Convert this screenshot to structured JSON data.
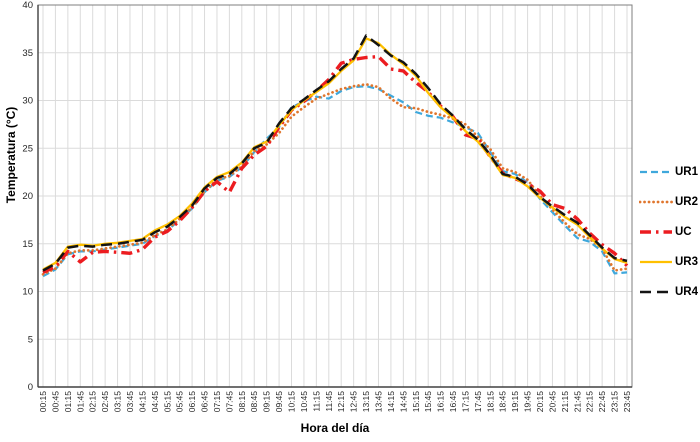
{
  "chart_data": {
    "type": "line",
    "title": "",
    "xlabel": "Hora del día",
    "ylabel": "Temperatura (°C)",
    "ylim": [
      0,
      40
    ],
    "y_ticks": [
      0,
      5,
      10,
      15,
      20,
      25,
      30,
      35,
      40
    ],
    "grid": true,
    "legend_position": "right",
    "categories": [
      "00:15",
      "00:45",
      "01:15",
      "01:45",
      "02:15",
      "02:45",
      "03:15",
      "03:45",
      "04:15",
      "04:45",
      "05:15",
      "05:45",
      "06:15",
      "06:45",
      "07:15",
      "07:45",
      "08:15",
      "08:45",
      "09:15",
      "09:45",
      "10:15",
      "10:45",
      "11:15",
      "11:45",
      "12:15",
      "12:45",
      "13:15",
      "13:45",
      "14:15",
      "14:45",
      "15:15",
      "15:45",
      "16:15",
      "16:45",
      "17:15",
      "17:45",
      "18:15",
      "18:45",
      "19:15",
      "19:45",
      "20:15",
      "20:45",
      "21:15",
      "21:45",
      "22:15",
      "22:45",
      "23:15",
      "23:45"
    ],
    "series": [
      {
        "name": "UR1",
        "color": "#3FA8DC",
        "style": "dashed",
        "dash": "7 4",
        "width": 2.2,
        "linecap": "butt",
        "values": [
          11.6,
          12.3,
          13.9,
          14.2,
          14.2,
          14.4,
          14.6,
          14.8,
          15.0,
          15.8,
          16.4,
          17.5,
          18.7,
          20.4,
          21.6,
          22.0,
          23.0,
          24.6,
          26.0,
          27.2,
          29.3,
          29.9,
          30.4,
          30.2,
          31.0,
          31.4,
          31.5,
          31.2,
          30.5,
          29.8,
          28.8,
          28.4,
          28.2,
          27.7,
          27.2,
          26.6,
          24.6,
          22.6,
          22.3,
          21.4,
          19.7,
          18.3,
          16.9,
          15.6,
          15.2,
          14.2,
          11.9,
          12.0
        ]
      },
      {
        "name": "UR2",
        "color": "#E0762D",
        "style": "dotted",
        "dash": "0.1 4.4",
        "width": 2.7,
        "linecap": "round",
        "values": [
          11.8,
          12.4,
          14.0,
          14.3,
          14.3,
          14.5,
          14.7,
          14.9,
          15.1,
          15.9,
          16.5,
          17.6,
          18.8,
          20.5,
          21.7,
          22.1,
          23.1,
          24.7,
          25.4,
          26.6,
          28.3,
          29.3,
          30.2,
          30.7,
          31.2,
          31.5,
          31.7,
          31.4,
          30.2,
          29.3,
          29.2,
          28.8,
          28.5,
          28.1,
          27.5,
          26.2,
          24.9,
          22.9,
          22.5,
          21.7,
          20.0,
          18.6,
          17.2,
          16.0,
          15.5,
          14.5,
          12.2,
          12.4
        ]
      },
      {
        "name": "UC",
        "color": "#EC1C20",
        "style": "dash-dot",
        "dash": "11 5 2.5 5",
        "width": 3.4,
        "linecap": "butt",
        "values": [
          12.0,
          12.6,
          14.2,
          13.1,
          14.1,
          14.2,
          14.1,
          14.0,
          14.4,
          15.7,
          16.3,
          17.4,
          18.8,
          20.5,
          21.5,
          20.4,
          22.9,
          24.3,
          25.2,
          27.2,
          29.0,
          29.9,
          31.0,
          32.2,
          33.9,
          34.3,
          34.5,
          34.6,
          33.3,
          33.1,
          31.9,
          30.9,
          29.4,
          28.3,
          26.4,
          26.0,
          24.1,
          22.4,
          21.8,
          21.3,
          20.5,
          19.1,
          18.7,
          17.6,
          16.1,
          14.9,
          14.0,
          12.7
        ]
      },
      {
        "name": "UR3",
        "color": "#FFC000",
        "style": "solid",
        "dash": "",
        "width": 2.3,
        "linecap": "butt",
        "values": [
          12.3,
          13.0,
          14.7,
          14.9,
          14.8,
          15.0,
          15.1,
          15.3,
          15.5,
          16.4,
          17.0,
          17.9,
          19.2,
          20.9,
          22.0,
          22.5,
          23.5,
          25.1,
          25.7,
          27.4,
          29.0,
          30.0,
          30.9,
          31.8,
          33.1,
          34.2,
          36.5,
          36.0,
          34.8,
          33.8,
          32.6,
          30.8,
          29.3,
          28.2,
          26.8,
          25.7,
          24.1,
          22.2,
          21.9,
          21.0,
          19.8,
          18.8,
          17.8,
          17.0,
          15.7,
          14.5,
          13.4,
          13.0
        ]
      },
      {
        "name": "UR4",
        "color": "#141414",
        "style": "dashed",
        "dash": "11 6",
        "width": 2.5,
        "linecap": "butt",
        "values": [
          12.2,
          12.9,
          14.6,
          14.8,
          14.7,
          14.9,
          15.0,
          15.2,
          15.4,
          16.2,
          16.8,
          17.8,
          19.0,
          20.8,
          21.9,
          22.3,
          23.4,
          25.0,
          25.6,
          27.6,
          29.2,
          30.1,
          31.1,
          32.0,
          33.3,
          34.4,
          36.8,
          35.8,
          34.7,
          34.0,
          32.8,
          31.3,
          29.6,
          28.4,
          27.0,
          25.9,
          24.3,
          22.3,
          22.0,
          21.2,
          19.9,
          18.9,
          18.0,
          17.2,
          15.9,
          14.6,
          13.5,
          13.2
        ]
      }
    ],
    "colors": {
      "grid": "#DBDBDB",
      "plot_border": "#7F7F7F",
      "axis_line": "#404040",
      "tick_label": "#262626"
    }
  }
}
